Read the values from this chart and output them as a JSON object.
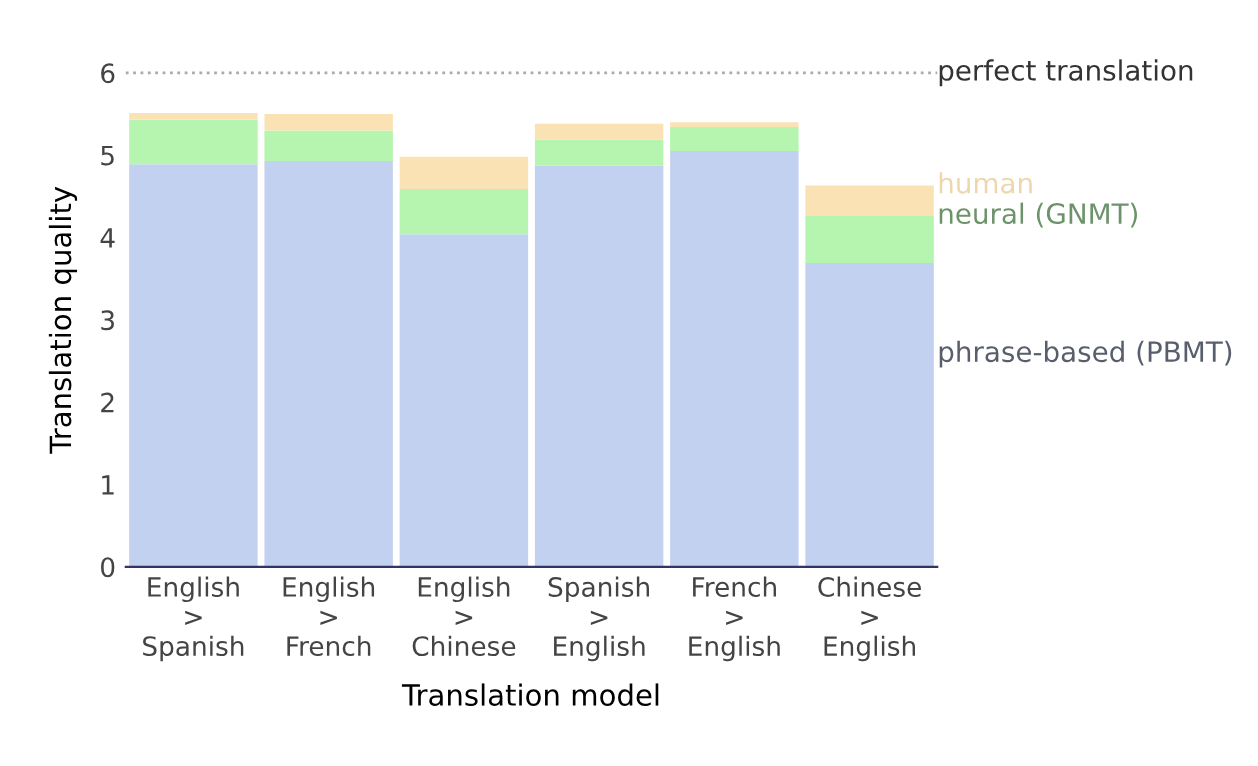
{
  "chart_data": {
    "type": "bar",
    "stacked": true,
    "xlabel": "Translation model",
    "ylabel": "Translation quality",
    "categories": [
      "English\n>\nSpanish",
      "English\n>\nFrench",
      "English\n>\nChinese",
      "Spanish\n>\nEnglish",
      "French\n>\nEnglish",
      "Chinese\n>\nEnglish"
    ],
    "series": [
      {
        "name": "phrase-based (PBMT)",
        "color": "#c3d1f0",
        "values": [
          4.89,
          4.93,
          4.04,
          4.87,
          5.05,
          3.69
        ]
      },
      {
        "name": "neural (GNMT)",
        "color": "#b5f5b0",
        "values": [
          0.54,
          0.37,
          0.55,
          0.32,
          0.29,
          0.57
        ]
      },
      {
        "name": "human",
        "color": "#fbe2b5",
        "values": [
          0.08,
          0.2,
          0.39,
          0.19,
          0.06,
          0.37
        ]
      }
    ],
    "ylim": [
      0,
      6
    ],
    "yticks": [
      0,
      1,
      2,
      3,
      4,
      5,
      6
    ],
    "grid": false,
    "ref_lines": [
      {
        "axis": "y",
        "value": 6,
        "label": "perfect translation",
        "color": "#aaaaaa",
        "line_style": "dotted"
      }
    ]
  }
}
